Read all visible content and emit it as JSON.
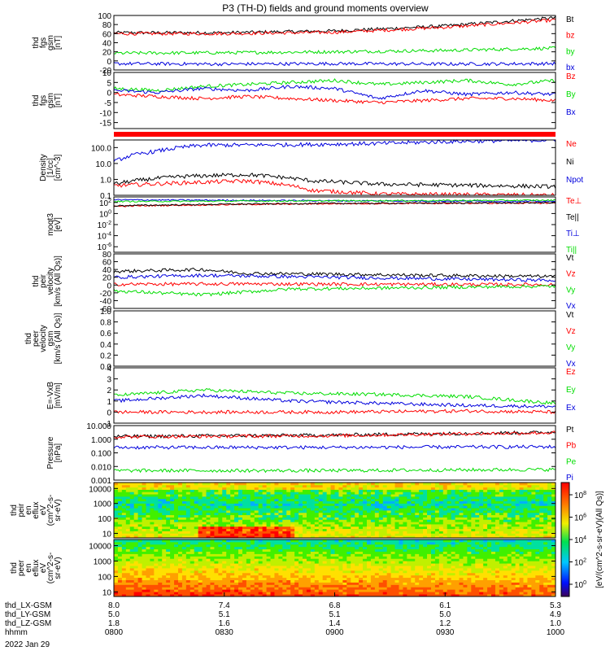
{
  "title": "P3 (TH-D) fields and ground moments overview",
  "date": "2022 Jan 29",
  "colors": {
    "black": "#000000",
    "red": "#ff0000",
    "green": "#00dd00",
    "blue": "#0000dd"
  },
  "chart_data": [
    {
      "type": "line",
      "ylabel": [
        "thd",
        "fgs",
        "gsm",
        "[nT]"
      ],
      "ylim": [
        -20,
        100
      ],
      "yticks": [
        "100",
        "80",
        "60",
        "40",
        "20",
        "0",
        "-20"
      ],
      "series": [
        {
          "name": "Bt",
          "color": "black",
          "x": [
            0,
            0.25,
            0.5,
            0.6,
            0.75,
            1
          ],
          "values": [
            62,
            62,
            66,
            70,
            77,
            95
          ]
        },
        {
          "name": "bz",
          "color": "red",
          "x": [
            0,
            0.25,
            0.5,
            0.6,
            0.75,
            1
          ],
          "values": [
            60,
            60,
            63,
            67,
            74,
            90
          ]
        },
        {
          "name": "by",
          "color": "green",
          "x": [
            0,
            0.25,
            0.5,
            0.75,
            1
          ],
          "values": [
            17,
            18,
            20,
            23,
            28
          ]
        },
        {
          "name": "bx",
          "color": "blue",
          "x": [
            0,
            0.25,
            0.5,
            0.75,
            1
          ],
          "values": [
            -6,
            -7,
            -6,
            -7,
            -6
          ]
        }
      ]
    },
    {
      "type": "line",
      "ylabel": [
        "thd",
        "fgs",
        "gsm",
        "[nT]"
      ],
      "ylim": [
        -18,
        10
      ],
      "yticks": [
        "10",
        "5",
        "0",
        "-5",
        "-10",
        "-15"
      ],
      "series": [
        {
          "name": "Bz",
          "color": "red",
          "x": [
            0,
            0.1,
            0.2,
            0.3,
            0.4,
            0.5,
            0.6,
            0.7,
            0.8,
            0.9,
            1
          ],
          "values": [
            -1,
            -2,
            -3,
            -2,
            -3,
            -4,
            -5,
            -4,
            -3,
            -3,
            -4
          ]
        },
        {
          "name": "By",
          "color": "green",
          "x": [
            0,
            0.1,
            0.2,
            0.3,
            0.4,
            0.5,
            0.6,
            0.7,
            0.8,
            0.9,
            1
          ],
          "values": [
            2,
            1,
            3,
            4,
            5,
            6,
            4,
            5,
            6,
            4,
            6
          ]
        },
        {
          "name": "Bx",
          "color": "blue",
          "x": [
            0,
            0.1,
            0.2,
            0.3,
            0.4,
            0.5,
            0.6,
            0.7,
            0.8,
            0.9,
            1
          ],
          "values": [
            1,
            0,
            2,
            1,
            3,
            2,
            -3,
            1,
            -1,
            0,
            -1
          ]
        }
      ]
    },
    {
      "type": "line",
      "ylabel": [
        "Density",
        "[1/cc]",
        "[cm^-3]"
      ],
      "scale": "log",
      "ylim": [
        0.1,
        300
      ],
      "yticks": [
        "100.0",
        "10.0",
        "1.0",
        "0.1"
      ],
      "series": [
        {
          "name": "Ne",
          "color": "red",
          "x": [
            0,
            0.15,
            0.3,
            0.45,
            0.6,
            1
          ],
          "values": [
            0.4,
            0.6,
            0.8,
            0.2,
            0.12,
            0.1
          ]
        },
        {
          "name": "Ni",
          "color": "black",
          "x": [
            0,
            0.15,
            0.3,
            0.45,
            0.6,
            1
          ],
          "values": [
            0.5,
            1.5,
            2,
            0.8,
            0.5,
            0.35
          ]
        },
        {
          "name": "Npot",
          "color": "blue",
          "x": [
            0,
            0.1,
            0.2,
            0.4,
            0.6,
            0.8,
            1
          ],
          "values": [
            12,
            60,
            140,
            150,
            180,
            250,
            300
          ]
        }
      ]
    },
    {
      "type": "line",
      "ylabel": [
        "moqt3",
        "[eV]"
      ],
      "scale": "log",
      "ylim": [
        1e-07,
        1000
      ],
      "yticks": [
        "10^2",
        "10^0",
        "10^-2",
        "10^-4",
        "10^-6"
      ],
      "series": [
        {
          "name": "Te⊥",
          "color": "red",
          "x": [
            0,
            0.5,
            1
          ],
          "values": [
            20,
            60,
            80
          ]
        },
        {
          "name": "Te||",
          "color": "black",
          "x": [
            0,
            0.5,
            1
          ],
          "values": [
            25,
            70,
            90
          ]
        },
        {
          "name": "Ti⊥",
          "color": "blue",
          "x": [
            0,
            0.5,
            1
          ],
          "values": [
            300,
            200,
            150
          ]
        },
        {
          "name": "Ti||",
          "color": "green",
          "x": [
            0,
            0.5,
            1
          ],
          "values": [
            150,
            200,
            250
          ]
        }
      ]
    },
    {
      "type": "line",
      "ylabel": [
        "thd",
        "peir",
        "velocity",
        "[km/s (All Qs)]"
      ],
      "ylim": [
        -60,
        80
      ],
      "yticks": [
        "80",
        "60",
        "40",
        "20",
        "0",
        "-20",
        "-40",
        "-60"
      ],
      "series": [
        {
          "name": "Vt",
          "color": "black",
          "x": [
            0,
            0.2,
            0.3,
            0.5,
            0.7,
            1
          ],
          "values": [
            35,
            40,
            30,
            28,
            25,
            22
          ]
        },
        {
          "name": "Vz",
          "color": "red",
          "x": [
            0,
            0.3,
            0.6,
            1
          ],
          "values": [
            2,
            3,
            2,
            1
          ]
        },
        {
          "name": "Vy",
          "color": "green",
          "x": [
            0,
            0.2,
            0.4,
            0.6,
            0.8,
            1
          ],
          "values": [
            -15,
            -25,
            -10,
            -8,
            -5,
            -3
          ]
        },
        {
          "name": "Vx",
          "color": "blue",
          "x": [
            0,
            0.2,
            0.5,
            0.8,
            1
          ],
          "values": [
            20,
            25,
            20,
            15,
            12
          ]
        }
      ]
    },
    {
      "type": "line",
      "ylabel": [
        "thd",
        "peer",
        "velocity",
        "gsm",
        "[km/s (All Qs)]"
      ],
      "ylim": [
        0,
        1
      ],
      "yticks": [
        "1.0",
        "0.8",
        "0.6",
        "0.4",
        "0.2",
        "0.0"
      ],
      "series": [
        {
          "name": "Vt",
          "color": "black"
        },
        {
          "name": "Vz",
          "color": "red"
        },
        {
          "name": "Vy",
          "color": "green"
        },
        {
          "name": "Vx",
          "color": "blue"
        }
      ]
    },
    {
      "type": "line",
      "ylabel": [
        "E=-VxB",
        "[mV/m]"
      ],
      "ylim": [
        -1,
        4
      ],
      "yticks": [
        "4",
        "3",
        "2",
        "1",
        "0",
        "-1"
      ],
      "series": [
        {
          "name": "Ez",
          "color": "red",
          "x": [
            0,
            0.3,
            0.5,
            0.8,
            1
          ],
          "values": [
            0,
            0,
            0,
            0.1,
            0
          ]
        },
        {
          "name": "Ey",
          "color": "green",
          "x": [
            0,
            0.2,
            0.4,
            0.6,
            0.8,
            1
          ],
          "values": [
            1.5,
            2,
            1.7,
            1.6,
            1.4,
            0.8
          ]
        },
        {
          "name": "Ex",
          "color": "blue",
          "x": [
            0,
            0.2,
            0.4,
            0.6,
            0.8,
            1
          ],
          "values": [
            1,
            1.5,
            1,
            0.8,
            0.6,
            0.5
          ]
        }
      ]
    },
    {
      "type": "line",
      "ylabel": [
        "Pressure",
        "[nPa]"
      ],
      "scale": "log",
      "ylim": [
        0.001,
        10
      ],
      "yticks": [
        "10.000",
        "1.000",
        "0.100",
        "0.010",
        "0.001"
      ],
      "series": [
        {
          "name": "Pt",
          "color": "black",
          "x": [
            0,
            0.5,
            1
          ],
          "values": [
            1.6,
            2.0,
            3.2
          ]
        },
        {
          "name": "Pb",
          "color": "red",
          "x": [
            0,
            0.5,
            1
          ],
          "values": [
            1.5,
            1.8,
            3.0
          ]
        },
        {
          "name": "Pe",
          "color": "green",
          "x": [
            0,
            0.5,
            1
          ],
          "values": [
            0.005,
            0.005,
            0.006
          ]
        },
        {
          "name": "Pi",
          "color": "blue",
          "x": [
            0,
            0.5,
            1
          ],
          "values": [
            0.25,
            0.25,
            0.28
          ]
        }
      ]
    },
    {
      "type": "heatmap",
      "ylabel": [
        "thd",
        "peir",
        "en",
        "eflux",
        "eV",
        "(cm^2-s-",
        "sr-eV)"
      ],
      "scale": "log",
      "ylim": [
        5,
        25000
      ],
      "yticks": [
        "10000",
        "1000",
        "100",
        "10"
      ]
    },
    {
      "type": "heatmap",
      "ylabel": [
        "thd",
        "peer",
        "en",
        "eflux",
        "eV",
        "(cm^2-s-",
        "sr-eV)"
      ],
      "scale": "log",
      "ylim": [
        5,
        25000
      ],
      "yticks": [
        "10000",
        "1000",
        "100",
        "10"
      ]
    }
  ],
  "colorbar": {
    "label": "[eV/(cm^2-s-sr-eV)(All Qs)]",
    "ticks": [
      "10^8",
      "10^6",
      "10^4",
      "10^2",
      "10^0"
    ]
  },
  "xaxis": {
    "rows": [
      {
        "label": "thd_LX-GSM",
        "values": [
          "8.0",
          "7.4",
          "6.8",
          "6.1",
          "5.3"
        ]
      },
      {
        "label": "thd_LY-GSM",
        "values": [
          "5.0",
          "5.1",
          "5.1",
          "5.0",
          "4.9"
        ]
      },
      {
        "label": "thd_LZ-GSM",
        "values": [
          "1.8",
          "1.6",
          "1.4",
          "1.2",
          "1.0"
        ]
      },
      {
        "label": "hhmm",
        "values": [
          "0800",
          "0830",
          "0900",
          "0930",
          "1000"
        ]
      }
    ]
  }
}
